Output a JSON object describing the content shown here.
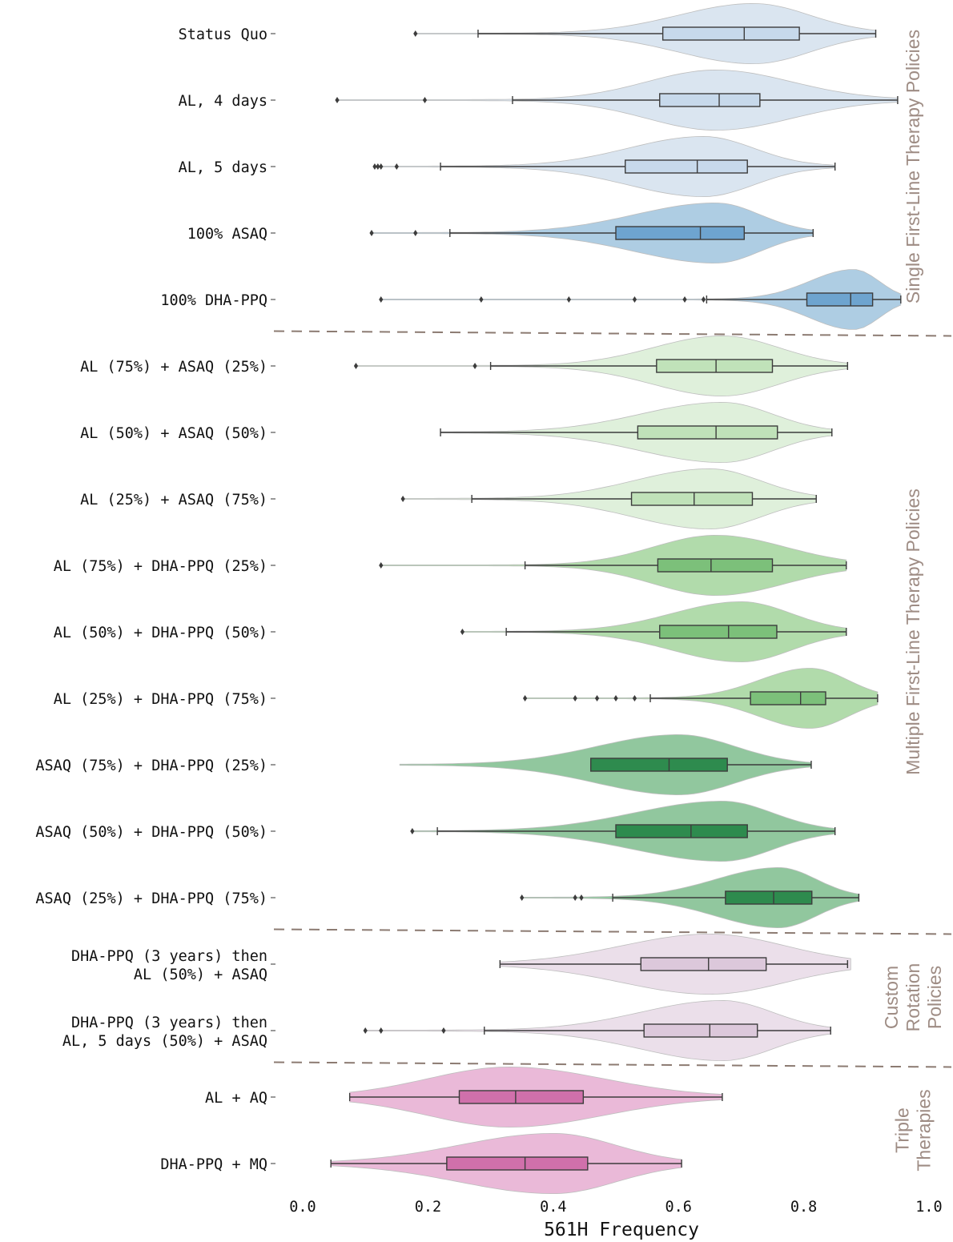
{
  "chart_data": {
    "type": "violin",
    "orientation": "horizontal",
    "xlabel": "561H Frequency",
    "xlim": [
      0.0,
      1.0
    ],
    "xticks": [
      "0.0",
      "0.2",
      "0.4",
      "0.6",
      "0.8",
      "1.0"
    ],
    "grid": false,
    "groups": [
      {
        "label": "Single First-Line Therapy Policies",
        "rows": [
          0,
          4
        ]
      },
      {
        "label": "Multiple First-Line Therapy Policies",
        "rows": [
          5,
          13
        ]
      },
      {
        "label": "Custom Rotation Policies",
        "lines": [
          "Custom",
          "Rotation",
          "Policies"
        ],
        "rows": [
          14,
          15
        ]
      },
      {
        "label": "Triple Therapies",
        "lines": [
          "Triple",
          "Therapies"
        ],
        "rows": [
          16,
          17
        ]
      }
    ],
    "series": [
      {
        "label": [
          "Status Quo"
        ],
        "color": "#d6e3ef",
        "box_color": "#c7d9eb",
        "whisker_low": 0.28,
        "q1": 0.575,
        "median": 0.705,
        "q3": 0.793,
        "whisker_high": 0.915,
        "outliers": [
          0.18
        ],
        "violin_min": 0.18,
        "violin_max": 0.915,
        "peak": 0.72,
        "spread_low": 0.12,
        "spread_high": 0.09,
        "skew_power": 2.0
      },
      {
        "label": [
          "AL, 4 days"
        ],
        "color": "#d6e3ef",
        "box_color": "#c7d9eb",
        "whisker_low": 0.335,
        "q1": 0.57,
        "median": 0.665,
        "q3": 0.73,
        "whisker_high": 0.95,
        "outliers": [
          0.055,
          0.195
        ],
        "violin_min": 0.055,
        "violin_max": 0.95,
        "peak": 0.66,
        "spread_low": 0.11,
        "spread_high": 0.12,
        "skew_power": 2.0
      },
      {
        "label": [
          "AL, 5 days"
        ],
        "color": "#d6e3ef",
        "box_color": "#c7d9eb",
        "whisker_low": 0.22,
        "q1": 0.515,
        "median": 0.63,
        "q3": 0.71,
        "whisker_high": 0.85,
        "outliers": [
          0.115,
          0.12,
          0.125,
          0.15
        ],
        "violin_min": 0.115,
        "violin_max": 0.85,
        "peak": 0.64,
        "spread_low": 0.12,
        "spread_high": 0.08,
        "skew_power": 2.0
      },
      {
        "label": [
          "100% ASAQ"
        ],
        "color": "#a6c8e0",
        "box_color": "#6ea4cf",
        "whisker_low": 0.235,
        "q1": 0.5,
        "median": 0.635,
        "q3": 0.705,
        "whisker_high": 0.815,
        "outliers": [
          0.11,
          0.18
        ],
        "violin_min": 0.11,
        "violin_max": 0.815,
        "peak": 0.66,
        "spread_low": 0.13,
        "spread_high": 0.07,
        "skew_power": 2.0
      },
      {
        "label": [
          "100% DHA-PPQ"
        ],
        "color": "#a6c8e0",
        "box_color": "#6ea4cf",
        "whisker_low": 0.645,
        "q1": 0.805,
        "median": 0.875,
        "q3": 0.91,
        "whisker_high": 0.955,
        "outliers": [
          0.125,
          0.285,
          0.425,
          0.53,
          0.61,
          0.64
        ],
        "violin_min": 0.125,
        "violin_max": 0.955,
        "peak": 0.88,
        "spread_low": 0.07,
        "spread_high": 0.04,
        "skew_power": 2.0
      },
      {
        "label": [
          "AL (75%) + ASAQ (25%)"
        ],
        "color": "#dcefd8",
        "box_color": "#c0e2b9",
        "whisker_low": 0.3,
        "q1": 0.565,
        "median": 0.66,
        "q3": 0.75,
        "whisker_high": 0.87,
        "outliers": [
          0.085,
          0.275
        ],
        "violin_min": 0.085,
        "violin_max": 0.87,
        "peak": 0.67,
        "spread_low": 0.11,
        "spread_high": 0.09,
        "skew_power": 2.0
      },
      {
        "label": [
          "AL (50%) + ASAQ (50%)"
        ],
        "color": "#dcefd8",
        "box_color": "#c0e2b9",
        "whisker_low": 0.22,
        "q1": 0.535,
        "median": 0.66,
        "q3": 0.758,
        "whisker_high": 0.845,
        "outliers": [],
        "violin_min": 0.22,
        "violin_max": 0.845,
        "peak": 0.67,
        "spread_low": 0.13,
        "spread_high": 0.08,
        "skew_power": 2.0
      },
      {
        "label": [
          "AL (25%) + ASAQ (75%)"
        ],
        "color": "#dcefd8",
        "box_color": "#c0e2b9",
        "whisker_low": 0.27,
        "q1": 0.525,
        "median": 0.625,
        "q3": 0.718,
        "whisker_high": 0.82,
        "outliers": [
          0.16
        ],
        "violin_min": 0.16,
        "violin_max": 0.82,
        "peak": 0.65,
        "spread_low": 0.12,
        "spread_high": 0.08,
        "skew_power": 2.0
      },
      {
        "label": [
          "AL (75%) + DHA-PPQ (25%)"
        ],
        "color": "#a9d8a2",
        "box_color": "#7cc07a",
        "whisker_low": 0.355,
        "q1": 0.567,
        "median": 0.652,
        "q3": 0.75,
        "whisker_high": 0.868,
        "outliers": [
          0.125
        ],
        "violin_min": 0.125,
        "violin_max": 0.868,
        "peak": 0.66,
        "spread_low": 0.1,
        "spread_high": 0.11,
        "skew_power": 2.0
      },
      {
        "label": [
          "AL (50%) + DHA-PPQ (50%)"
        ],
        "color": "#a9d8a2",
        "box_color": "#7cc07a",
        "whisker_low": 0.325,
        "q1": 0.57,
        "median": 0.68,
        "q3": 0.757,
        "whisker_high": 0.868,
        "outliers": [
          0.255
        ],
        "violin_min": 0.255,
        "violin_max": 0.868,
        "peak": 0.7,
        "spread_low": 0.11,
        "spread_high": 0.08,
        "skew_power": 2.0
      },
      {
        "label": [
          "AL (25%) + DHA-PPQ (75%)"
        ],
        "color": "#a9d8a2",
        "box_color": "#7cc07a",
        "whisker_low": 0.555,
        "q1": 0.715,
        "median": 0.795,
        "q3": 0.835,
        "whisker_high": 0.918,
        "outliers": [
          0.355,
          0.435,
          0.47,
          0.5,
          0.53
        ],
        "violin_min": 0.355,
        "violin_max": 0.918,
        "peak": 0.81,
        "spread_low": 0.08,
        "spread_high": 0.06,
        "skew_power": 2.0
      },
      {
        "label": [
          "ASAQ (75%) + DHA-PPQ (25%)"
        ],
        "color": "#86c294",
        "box_color": "#2e8b4e",
        "whisker_low": 0.46,
        "q1": 0.46,
        "median": 0.585,
        "q3": 0.678,
        "whisker_high": 0.812,
        "outliers": [],
        "violin_min": 0.155,
        "violin_max": 0.812,
        "peak": 0.6,
        "spread_low": 0.13,
        "spread_high": 0.09,
        "skew_power": 2.0
      },
      {
        "label": [
          "ASAQ (50%) + DHA-PPQ (50%)"
        ],
        "color": "#86c294",
        "box_color": "#2e8b4e",
        "whisker_low": 0.215,
        "q1": 0.5,
        "median": 0.62,
        "q3": 0.71,
        "whisker_high": 0.85,
        "outliers": [
          0.175
        ],
        "violin_min": 0.175,
        "violin_max": 0.85,
        "peak": 0.67,
        "spread_low": 0.14,
        "spread_high": 0.08,
        "skew_power": 2.0
      },
      {
        "label": [
          "ASAQ (25%) + DHA-PPQ (75%)"
        ],
        "color": "#86c294",
        "box_color": "#2e8b4e",
        "whisker_low": 0.495,
        "q1": 0.675,
        "median": 0.752,
        "q3": 0.813,
        "whisker_high": 0.888,
        "outliers": [
          0.35,
          0.435,
          0.445
        ],
        "violin_min": 0.35,
        "violin_max": 0.888,
        "peak": 0.76,
        "spread_low": 0.1,
        "spread_high": 0.06,
        "skew_power": 2.0
      },
      {
        "label": [
          "DHA-PPQ (3 years) then",
          "AL (50%) + ASAQ"
        ],
        "color": "#e9dce8",
        "box_color": "#dcc8db",
        "whisker_low": 0.315,
        "q1": 0.54,
        "median": 0.648,
        "q3": 0.74,
        "whisker_high": 0.87,
        "outliers": [],
        "violin_min": 0.315,
        "violin_max": 0.875,
        "peak": 0.65,
        "spread_low": 0.14,
        "spread_high": 0.12,
        "skew_power": 2.0
      },
      {
        "label": [
          "DHA-PPQ (3 years) then",
          "AL, 5 days (50%) + ASAQ"
        ],
        "color": "#e9dce8",
        "box_color": "#dcc8db",
        "whisker_low": 0.29,
        "q1": 0.545,
        "median": 0.65,
        "q3": 0.726,
        "whisker_high": 0.843,
        "outliers": [
          0.1,
          0.125,
          0.225
        ],
        "violin_min": 0.1,
        "violin_max": 0.843,
        "peak": 0.67,
        "spread_low": 0.13,
        "spread_high": 0.08,
        "skew_power": 2.0
      },
      {
        "label": [
          "AL + AQ"
        ],
        "color": "#e8b2d4",
        "box_color": "#d070ab",
        "whisker_low": 0.075,
        "q1": 0.25,
        "median": 0.34,
        "q3": 0.448,
        "whisker_high": 0.67,
        "outliers": [],
        "violin_min": 0.075,
        "violin_max": 0.67,
        "peak": 0.33,
        "spread_low": 0.13,
        "spread_high": 0.15,
        "skew_power": 2.0
      },
      {
        "label": [
          "DHA-PPQ + MQ"
        ],
        "color": "#e8b2d4",
        "box_color": "#d070ab",
        "whisker_low": 0.045,
        "q1": 0.23,
        "median": 0.355,
        "q3": 0.455,
        "whisker_high": 0.605,
        "outliers": [],
        "violin_min": 0.045,
        "violin_max": 0.605,
        "peak": 0.4,
        "spread_low": 0.15,
        "spread_high": 0.1,
        "skew_power": 2.0
      }
    ]
  }
}
